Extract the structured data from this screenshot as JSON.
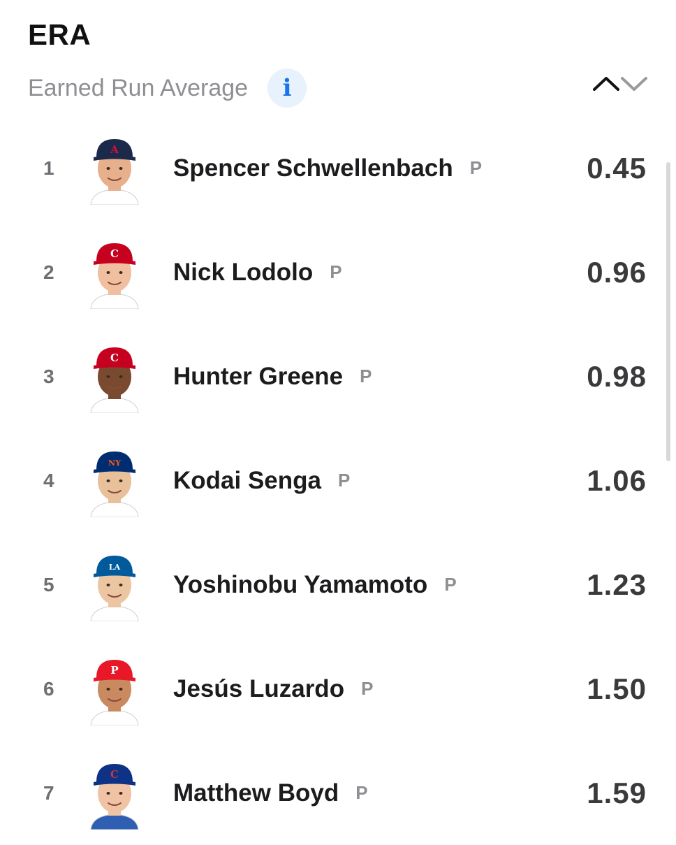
{
  "header": {
    "title": "ERA",
    "subtitle": "Earned Run Average",
    "info_icon": "info-icon",
    "info_label": "i",
    "sort_up_icon": "chevron-up-icon",
    "sort_down_icon": "chevron-down-icon"
  },
  "colors": {
    "info_blue": "#1a73e8",
    "info_bg": "#e8f2fd",
    "text_primary": "#1c1c1e",
    "text_secondary": "#8e8e93"
  },
  "leaders": [
    {
      "rank": "1",
      "name": "Spencer Schwellenbach",
      "position": "P",
      "value": "0.45",
      "cap_color": "#1b2a4a",
      "cap_logo": "A",
      "logo_color": "#ce1141",
      "jersey": "#ffffff",
      "skin": "#e6b08c"
    },
    {
      "rank": "2",
      "name": "Nick Lodolo",
      "position": "P",
      "value": "0.96",
      "cap_color": "#c6011f",
      "cap_logo": "C",
      "logo_color": "#ffffff",
      "jersey": "#ffffff",
      "skin": "#f0bfa0"
    },
    {
      "rank": "3",
      "name": "Hunter Greene",
      "position": "P",
      "value": "0.98",
      "cap_color": "#c6011f",
      "cap_logo": "C",
      "logo_color": "#ffffff",
      "jersey": "#ffffff",
      "skin": "#7a4a30"
    },
    {
      "rank": "4",
      "name": "Kodai Senga",
      "position": "P",
      "value": "1.06",
      "cap_color": "#002d72",
      "cap_logo": "NY",
      "logo_color": "#ff5910",
      "jersey": "#ffffff",
      "skin": "#e8c09a"
    },
    {
      "rank": "5",
      "name": "Yoshinobu Yamamoto",
      "position": "P",
      "value": "1.23",
      "cap_color": "#005a9c",
      "cap_logo": "LA",
      "logo_color": "#ffffff",
      "jersey": "#ffffff",
      "skin": "#ecc6a2"
    },
    {
      "rank": "6",
      "name": "Jesús Luzardo",
      "position": "P",
      "value": "1.50",
      "cap_color": "#e81828",
      "cap_logo": "P",
      "logo_color": "#ffffff",
      "jersey": "#ffffff",
      "skin": "#c98a60"
    },
    {
      "rank": "7",
      "name": "Matthew Boyd",
      "position": "P",
      "value": "1.59",
      "cap_color": "#0e3386",
      "cap_logo": "C",
      "logo_color": "#cc3433",
      "jersey": "#2f5fb3",
      "skin": "#efc3a4"
    }
  ]
}
